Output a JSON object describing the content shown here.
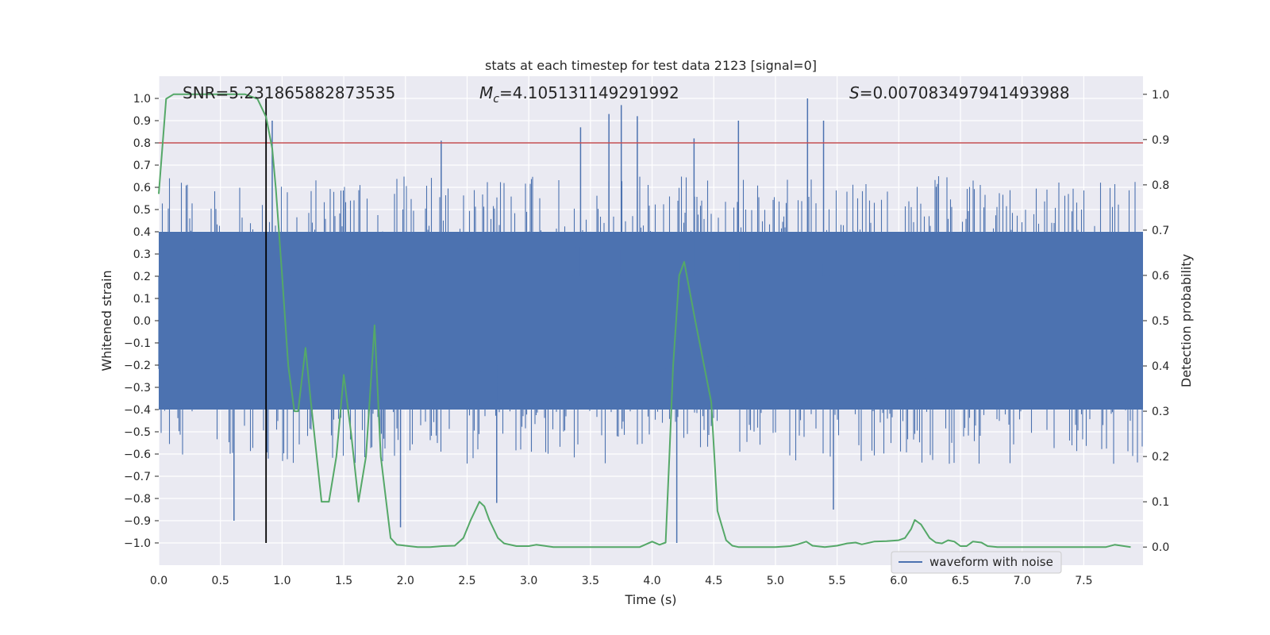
{
  "chart_data": {
    "type": "line",
    "title": "stats at each timestep for test data 2123 [signal=0]",
    "xlabel": "Time (s)",
    "ylabel": "Whitened strain",
    "ylabel_right": "Detection probability",
    "xlim": [
      0.0,
      7.98
    ],
    "ylim": [
      -1.1,
      1.1
    ],
    "ylim_right": [
      -0.04,
      1.04
    ],
    "x_ticks": [
      0.0,
      0.5,
      1.0,
      1.5,
      2.0,
      2.5,
      3.0,
      3.5,
      4.0,
      4.5,
      5.0,
      5.5,
      6.0,
      6.5,
      7.0,
      7.5
    ],
    "x_tick_labels": [
      "0.0",
      "0.5",
      "1.0",
      "1.5",
      "2.0",
      "2.5",
      "3.0",
      "3.5",
      "4.0",
      "4.5",
      "5.0",
      "5.5",
      "6.0",
      "6.5",
      "7.0",
      "7.5"
    ],
    "y_ticks": [
      1.0,
      0.9,
      0.8,
      0.7,
      0.6,
      0.5,
      0.4,
      0.3,
      0.2,
      0.1,
      0.0,
      -0.1,
      -0.2,
      -0.3,
      -0.4,
      -0.5,
      -0.6,
      -0.7,
      -0.8,
      -0.9,
      -1.0
    ],
    "y_tick_labels": [
      "1.0",
      "0.9",
      "0.8",
      "0.7",
      "0.6",
      "0.5",
      "0.4",
      "0.3",
      "0.2",
      "0.1",
      "0.0",
      "−0.1",
      "−0.2",
      "−0.3",
      "−0.4",
      "−0.5",
      "−0.6",
      "−0.7",
      "−0.8",
      "−0.9",
      "−1.0"
    ],
    "y2_ticks": [
      1.0,
      0.9,
      0.8,
      0.7,
      0.6,
      0.5,
      0.4,
      0.3,
      0.2,
      0.1,
      0.0
    ],
    "y2_tick_labels": [
      "1.0",
      "0.9",
      "0.8",
      "0.7",
      "0.6",
      "0.5",
      "0.4",
      "0.3",
      "0.2",
      "0.1",
      "0.0"
    ],
    "grid": true,
    "legend": {
      "position": "lower-right",
      "entries": [
        "waveform with noise"
      ]
    },
    "annotations": {
      "snr_label": "SNR=5.231865882873535",
      "mc_symbol": "M",
      "mc_subscript": "c",
      "mc_value": "=4.105131149291992",
      "s_symbol": "S",
      "s_value": "=0.007083497941493988"
    },
    "threshold": {
      "value": 0.8,
      "color": "#c44e52"
    },
    "marker_time": 0.87,
    "waveform": {
      "name": "waveform with noise",
      "color": "#4c72b0",
      "dense_band": [
        -0.4,
        0.4
      ],
      "spikes": [
        {
          "x": 0.92,
          "y": 0.9
        },
        {
          "x": 2.29,
          "y": 0.81
        },
        {
          "x": 3.42,
          "y": 0.87
        },
        {
          "x": 3.65,
          "y": 0.93
        },
        {
          "x": 3.75,
          "y": 0.97
        },
        {
          "x": 3.88,
          "y": 0.92
        },
        {
          "x": 4.34,
          "y": 0.82
        },
        {
          "x": 4.7,
          "y": 0.9
        },
        {
          "x": 5.26,
          "y": 1.0
        },
        {
          "x": 5.39,
          "y": 0.9
        },
        {
          "x": 4.2,
          "y": -1.0
        },
        {
          "x": 1.96,
          "y": -0.93
        },
        {
          "x": 0.61,
          "y": -0.9
        },
        {
          "x": 5.47,
          "y": -0.85
        },
        {
          "x": 2.74,
          "y": -0.82
        }
      ]
    },
    "probability": {
      "color": "#55a868",
      "x": [
        0.0,
        0.06,
        0.12,
        0.2,
        0.3,
        0.4,
        0.5,
        0.6,
        0.7,
        0.75,
        0.8,
        0.87,
        0.92,
        0.95,
        1.0,
        1.05,
        1.1,
        1.13,
        1.19,
        1.23,
        1.32,
        1.38,
        1.44,
        1.5,
        1.56,
        1.62,
        1.68,
        1.75,
        1.8,
        1.88,
        1.93,
        2.0,
        2.1,
        2.2,
        2.3,
        2.4,
        2.47,
        2.53,
        2.6,
        2.64,
        2.68,
        2.75,
        2.8,
        2.9,
        3.0,
        3.06,
        3.12,
        3.2,
        3.3,
        3.4,
        3.5,
        3.6,
        3.7,
        3.8,
        3.9,
        4.0,
        4.06,
        4.11,
        4.14,
        4.17,
        4.22,
        4.26,
        4.35,
        4.48,
        4.53,
        4.6,
        4.65,
        4.7,
        4.8,
        5.0,
        5.12,
        5.18,
        5.25,
        5.3,
        5.4,
        5.5,
        5.58,
        5.65,
        5.7,
        5.8,
        5.9,
        6.0,
        6.05,
        6.1,
        6.13,
        6.18,
        6.25,
        6.3,
        6.35,
        6.4,
        6.45,
        6.5,
        6.55,
        6.6,
        6.67,
        6.72,
        6.8,
        7.0,
        7.5,
        7.68,
        7.75,
        7.88
      ],
      "y": [
        0.78,
        0.99,
        1.0,
        1.0,
        1.0,
        1.0,
        1.0,
        1.0,
        1.0,
        0.995,
        0.99,
        0.95,
        0.88,
        0.79,
        0.6,
        0.4,
        0.3,
        0.3,
        0.44,
        0.33,
        0.1,
        0.1,
        0.2,
        0.38,
        0.25,
        0.1,
        0.2,
        0.49,
        0.2,
        0.02,
        0.005,
        0.003,
        0.0,
        0.0,
        0.002,
        0.003,
        0.02,
        0.06,
        0.1,
        0.09,
        0.06,
        0.02,
        0.008,
        0.002,
        0.002,
        0.005,
        0.003,
        0.0,
        0.0,
        0.0,
        0.0,
        0.0,
        0.0,
        0.0,
        0.0,
        0.012,
        0.005,
        0.01,
        0.2,
        0.4,
        0.6,
        0.63,
        0.5,
        0.32,
        0.08,
        0.015,
        0.003,
        0.0,
        0.0,
        0.0,
        0.002,
        0.006,
        0.012,
        0.003,
        0.0,
        0.003,
        0.008,
        0.01,
        0.006,
        0.012,
        0.013,
        0.015,
        0.02,
        0.04,
        0.06,
        0.05,
        0.02,
        0.01,
        0.008,
        0.015,
        0.012,
        0.002,
        0.002,
        0.012,
        0.01,
        0.002,
        0.0,
        0.0,
        0.0,
        0.0,
        0.005,
        0.0
      ]
    }
  }
}
